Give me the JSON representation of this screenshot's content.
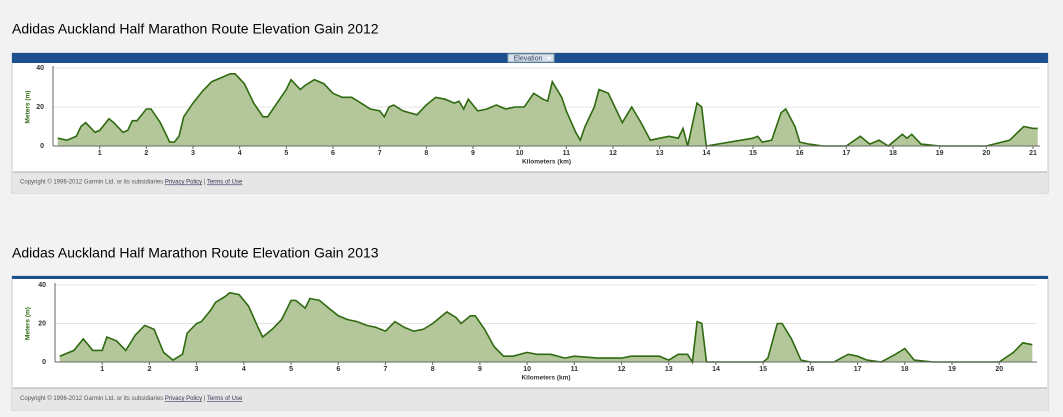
{
  "chart_data": [
    {
      "type": "area",
      "title": "Adidas Auckland Half Marathon Route Elevation Gain 2012",
      "header": "Elevation",
      "xlabel": "Kilometers (km)",
      "ylabel": "Meters (m)",
      "copyright": "Copyright © 1996-2012 Garmin Ltd. or its subsidiaries",
      "privacy": "Privacy Policy",
      "separator": "|",
      "terms": "Terms of Use",
      "color": "#b3c79a",
      "line_color": "#2f6a10",
      "xlim": [
        0,
        21.15
      ],
      "xticks": [
        1,
        2,
        3,
        4,
        5,
        6,
        7,
        8,
        9,
        10,
        11,
        12,
        13,
        14,
        15,
        16,
        17,
        18,
        19,
        20,
        21
      ],
      "ylim": [
        0,
        40
      ],
      "yticks": [
        0,
        20,
        40
      ],
      "x": [
        0.1,
        0.3,
        0.5,
        0.6,
        0.7,
        0.9,
        1.0,
        1.2,
        1.3,
        1.5,
        1.6,
        1.7,
        1.8,
        2.0,
        2.1,
        2.3,
        2.5,
        2.6,
        2.7,
        2.8,
        3.0,
        3.2,
        3.4,
        3.6,
        3.8,
        3.9,
        4.1,
        4.3,
        4.5,
        4.6,
        4.8,
        5.0,
        5.1,
        5.3,
        5.4,
        5.6,
        5.8,
        6.0,
        6.2,
        6.4,
        6.6,
        6.8,
        7.0,
        7.1,
        7.2,
        7.3,
        7.5,
        7.8,
        8.0,
        8.2,
        8.4,
        8.6,
        8.7,
        8.8,
        8.9,
        9.1,
        9.3,
        9.5,
        9.7,
        9.9,
        10.1,
        10.3,
        10.5,
        10.6,
        10.7,
        10.9,
        11.0,
        11.2,
        11.3,
        11.4,
        11.6,
        11.7,
        11.9,
        12.0,
        12.2,
        12.3,
        12.4,
        12.6,
        12.8,
        13.0,
        13.2,
        13.4,
        13.5,
        13.6,
        13.8,
        13.9,
        14.0,
        15.0,
        15.1,
        15.2,
        15.4,
        15.6,
        15.7,
        15.9,
        16.0,
        16.2,
        16.5,
        17.0,
        17.3,
        17.5,
        17.7,
        17.9,
        18.2,
        18.3,
        18.4,
        18.6,
        19.0,
        20.0,
        20.5,
        20.8,
        21.0,
        21.1
      ],
      "values": [
        4,
        3,
        5,
        10,
        12,
        7,
        8,
        14,
        12,
        7,
        8,
        13,
        13,
        19,
        19,
        12,
        2,
        2,
        5,
        15,
        22,
        28,
        33,
        35,
        37,
        37,
        32,
        22,
        15,
        15,
        22,
        29,
        34,
        29,
        31,
        34,
        32,
        27,
        25,
        25,
        22,
        19,
        18,
        15,
        20,
        21,
        18,
        16,
        21,
        25,
        24,
        22,
        23,
        19,
        24,
        18,
        19,
        21,
        19,
        20,
        20,
        27,
        24,
        23,
        33,
        25,
        18,
        7,
        3,
        10,
        20,
        29,
        27,
        22,
        12,
        16,
        20,
        12,
        3,
        4,
        5,
        4,
        9,
        0,
        22,
        20,
        0,
        4,
        5,
        2,
        3,
        17,
        19,
        10,
        2,
        1,
        0,
        0,
        5,
        1,
        3,
        0,
        6,
        4,
        6,
        1,
        0,
        0,
        3,
        10,
        9,
        9
      ]
    },
    {
      "type": "area",
      "title": "Adidas Auckland Half Marathon Route Elevation Gain 2013",
      "xlabel": "Kilometers (km)",
      "ylabel": "Meters (m)",
      "copyright": "Copyright © 1996-2012 Garmin Ltd. or its subsidiaries",
      "privacy": "Privacy Policy",
      "separator": "|",
      "terms": "Terms of Use",
      "color": "#b3c79a",
      "line_color": "#2f6a10",
      "xlim": [
        0,
        20.8
      ],
      "xticks": [
        1,
        2,
        3,
        4,
        5,
        6,
        7,
        8,
        9,
        10,
        11,
        12,
        13,
        14,
        15,
        16,
        17,
        18,
        19,
        20
      ],
      "ylim": [
        0,
        40
      ],
      "yticks": [
        0,
        20,
        40
      ],
      "x": [
        0.1,
        0.4,
        0.6,
        0.8,
        1.0,
        1.1,
        1.3,
        1.5,
        1.7,
        1.9,
        2.1,
        2.3,
        2.5,
        2.7,
        2.8,
        3.0,
        3.1,
        3.3,
        3.4,
        3.6,
        3.7,
        3.9,
        4.1,
        4.3,
        4.4,
        4.6,
        4.8,
        5.0,
        5.1,
        5.3,
        5.4,
        5.6,
        5.8,
        6.0,
        6.2,
        6.4,
        6.6,
        6.8,
        7.0,
        7.2,
        7.4,
        7.6,
        7.8,
        8.0,
        8.2,
        8.3,
        8.5,
        8.6,
        8.8,
        8.9,
        9.1,
        9.3,
        9.5,
        9.7,
        10.0,
        10.2,
        10.5,
        10.8,
        11.0,
        11.5,
        12.0,
        12.2,
        12.8,
        13.0,
        13.2,
        13.4,
        13.5,
        13.6,
        13.7,
        13.8,
        15.0,
        15.1,
        15.3,
        15.4,
        15.6,
        15.8,
        16.0,
        16.5,
        16.8,
        17.0,
        17.2,
        17.5,
        17.8,
        18.0,
        18.2,
        18.6,
        20.0,
        20.3,
        20.5,
        20.7
      ],
      "values": [
        3,
        6,
        12,
        6,
        6,
        13,
        11,
        6,
        14,
        19,
        17,
        5,
        1,
        4,
        15,
        20,
        21,
        27,
        31,
        34,
        36,
        35,
        29,
        18,
        13,
        17,
        22,
        32,
        32,
        28,
        33,
        32,
        28,
        24,
        22,
        21,
        19,
        18,
        16,
        21,
        18,
        16,
        17,
        20,
        24,
        26,
        23,
        20,
        24,
        24,
        17,
        8,
        3,
        3,
        5,
        4,
        4,
        2,
        3,
        2,
        2,
        3,
        3,
        1,
        4,
        4,
        0,
        21,
        20,
        0,
        0,
        2,
        20,
        20,
        12,
        1,
        0,
        0,
        4,
        3,
        1,
        0,
        4,
        7,
        1,
        0,
        0,
        5,
        10,
        9
      ]
    }
  ]
}
